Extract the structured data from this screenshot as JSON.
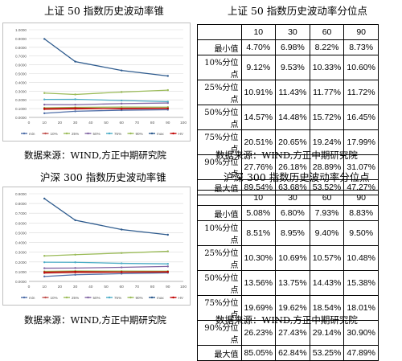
{
  "top": {
    "chart_title": "上证 50 指数历史波动率锥",
    "table_title": "上证 50 指数历史波动率分位点",
    "source_left": "数据来源：WIND,方正中期研究院",
    "source_right": "数据来源：WIND,方正中期研究院"
  },
  "bottom": {
    "chart_title": "沪深 300 指数历史波动率锥",
    "table_title": "沪深 300 指数历史波动率分位点",
    "source_left": "数据来源：WIND,方正中期研究院",
    "source_right": "数据来源：WIND,方正中期研究院"
  },
  "tables": [
    {
      "columns": [
        "10",
        "30",
        "60",
        "90"
      ],
      "rows": [
        {
          "label": "最小值",
          "values": [
            "4.70%",
            "6.98%",
            "8.22%",
            "8.73%"
          ]
        },
        {
          "label": "10%分位点",
          "values": [
            "9.12%",
            "9.53%",
            "10.33%",
            "10.60%"
          ]
        },
        {
          "label": "25%分位点",
          "values": [
            "10.91%",
            "11.43%",
            "11.77%",
            "11.72%"
          ]
        },
        {
          "label": "50%分位点",
          "values": [
            "14.57%",
            "14.48%",
            "15.72%",
            "16.45%"
          ]
        },
        {
          "label": "75%分位点",
          "values": [
            "20.51%",
            "20.65%",
            "19.24%",
            "17.99%"
          ]
        },
        {
          "label": "90%分位点",
          "values": [
            "27.76%",
            "26.18%",
            "28.89%",
            "31.07%"
          ]
        },
        {
          "label": "最大值",
          "values": [
            "89.54%",
            "63.68%",
            "53.52%",
            "47.27%"
          ]
        }
      ]
    },
    {
      "columns": [
        "10",
        "30",
        "60",
        "90"
      ],
      "rows": [
        {
          "label": "最小值",
          "values": [
            "5.08%",
            "6.80%",
            "7.93%",
            "8.83%"
          ]
        },
        {
          "label": "10%分位点",
          "values": [
            "8.51%",
            "8.95%",
            "9.40%",
            "9.50%"
          ]
        },
        {
          "label": "25%分位点",
          "values": [
            "10.30%",
            "10.69%",
            "10.57%",
            "10.48%"
          ]
        },
        {
          "label": "50%分位点",
          "values": [
            "13.56%",
            "13.75%",
            "14.43%",
            "15.38%"
          ]
        },
        {
          "label": "75%分位点",
          "values": [
            "19.69%",
            "19.62%",
            "18.54%",
            "18.01%"
          ]
        },
        {
          "label": "90%分位点",
          "values": [
            "26.23%",
            "27.43%",
            "29.14%",
            "30.90%"
          ]
        },
        {
          "label": "最大值",
          "values": [
            "85.05%",
            "62.84%",
            "53.25%",
            "47.89%"
          ]
        }
      ]
    }
  ],
  "chart_data": [
    {
      "type": "line",
      "title": "",
      "x": [
        10,
        30,
        60,
        90
      ],
      "xlim": [
        0,
        100
      ],
      "xticks": [
        "0",
        "10",
        "20",
        "30",
        "40",
        "50",
        "60",
        "70",
        "80",
        "90",
        "100"
      ],
      "ylim": [
        0,
        1.0
      ],
      "yticks": [
        "0.0000",
        "0.1000",
        "0.2000",
        "0.3000",
        "0.4000",
        "0.5000",
        "0.6000",
        "0.7000",
        "0.8000",
        "0.9000",
        "1.0000"
      ],
      "legend_position": "bottom",
      "series": [
        {
          "name": "min",
          "color": "#4f6ea8",
          "values": [
            0.047,
            0.0698,
            0.0822,
            0.0873
          ]
        },
        {
          "name": "10%",
          "color": "#c0504d",
          "values": [
            0.0912,
            0.0953,
            0.1033,
            0.106
          ]
        },
        {
          "name": "25%",
          "color": "#9bbb59",
          "values": [
            0.1091,
            0.1143,
            0.1177,
            0.1172
          ]
        },
        {
          "name": "50%",
          "color": "#8064a2",
          "values": [
            0.1457,
            0.1448,
            0.1572,
            0.1645
          ]
        },
        {
          "name": "75%",
          "color": "#4bacc6",
          "values": [
            0.2051,
            0.2065,
            0.1924,
            0.1799
          ]
        },
        {
          "name": "90%",
          "color": "#9bbb59",
          "values": [
            0.2776,
            0.2618,
            0.2889,
            0.3107
          ]
        },
        {
          "name": "max",
          "color": "#2e5b8e",
          "values": [
            0.8954,
            0.6368,
            0.5352,
            0.4727
          ]
        },
        {
          "name": "HV",
          "color": "#c00000",
          "values": [
            0.1,
            0.105,
            0.098,
            0.102
          ]
        }
      ]
    },
    {
      "type": "line",
      "title": "",
      "x": [
        10,
        30,
        60,
        90
      ],
      "xlim": [
        0,
        100
      ],
      "xticks": [
        "0",
        "10",
        "20",
        "30",
        "40",
        "50",
        "60",
        "70",
        "80",
        "90",
        "100"
      ],
      "ylim": [
        0,
        0.9
      ],
      "yticks": [
        "0.0000",
        "0.1000",
        "0.2000",
        "0.3000",
        "0.4000",
        "0.5000",
        "0.6000",
        "0.7000",
        "0.8000",
        "0.9000"
      ],
      "legend_position": "bottom",
      "series": [
        {
          "name": "min",
          "color": "#4f6ea8",
          "values": [
            0.0508,
            0.068,
            0.0793,
            0.0883
          ]
        },
        {
          "name": "10%",
          "color": "#c0504d",
          "values": [
            0.0851,
            0.0895,
            0.094,
            0.095
          ]
        },
        {
          "name": "25%",
          "color": "#9bbb59",
          "values": [
            0.103,
            0.1069,
            0.1057,
            0.1048
          ]
        },
        {
          "name": "50%",
          "color": "#8064a2",
          "values": [
            0.1356,
            0.1375,
            0.1443,
            0.1538
          ]
        },
        {
          "name": "75%",
          "color": "#4bacc6",
          "values": [
            0.1969,
            0.1962,
            0.1854,
            0.1801
          ]
        },
        {
          "name": "90%",
          "color": "#9bbb59",
          "values": [
            0.2623,
            0.2743,
            0.2914,
            0.309
          ]
        },
        {
          "name": "max",
          "color": "#2e5b8e",
          "values": [
            0.8505,
            0.6284,
            0.5325,
            0.4789
          ]
        },
        {
          "name": "HV",
          "color": "#c00000",
          "values": [
            0.095,
            0.1,
            0.097,
            0.099
          ]
        }
      ]
    }
  ]
}
